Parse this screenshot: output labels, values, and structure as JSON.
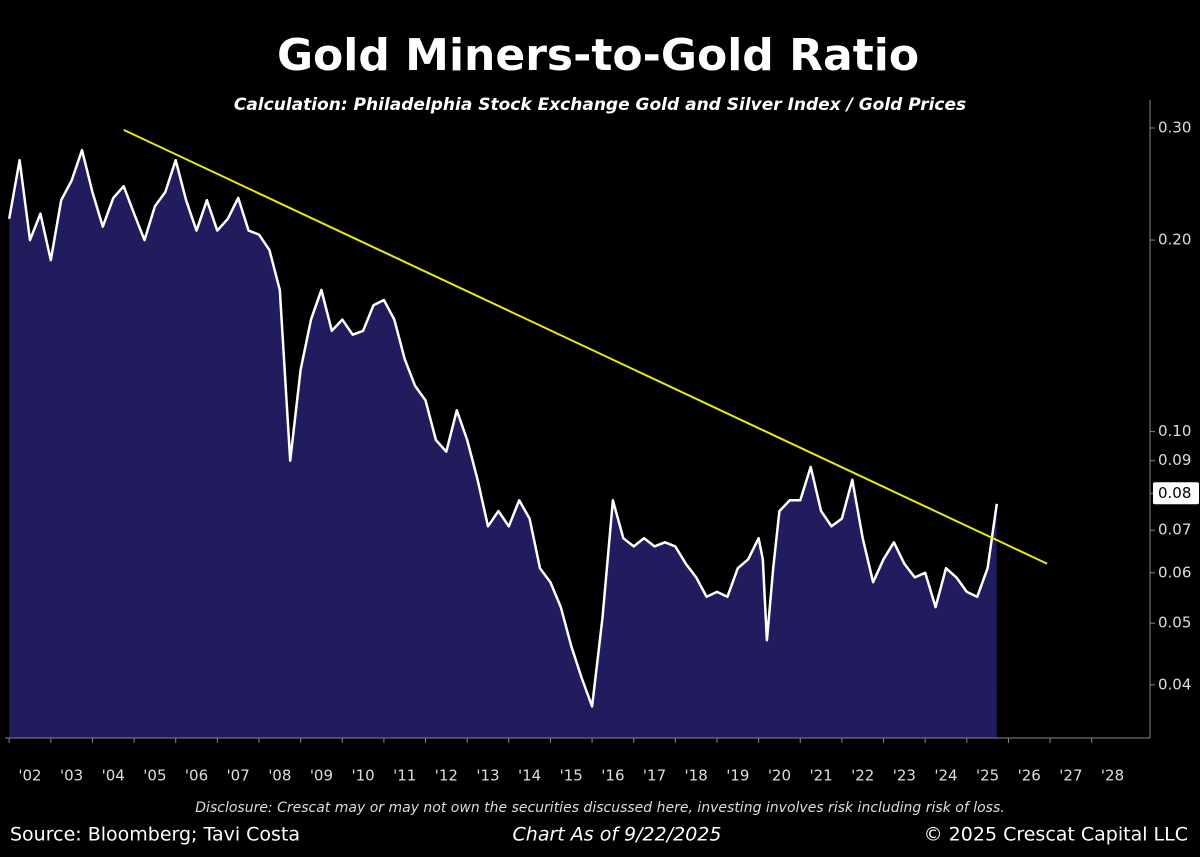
{
  "chart_data": {
    "type": "area",
    "title": "Gold Miners-to-Gold Ratio",
    "subtitle": "Calculation: Philadelphia Stock Exchange Gold and Silver Index / Gold Prices",
    "disclosure": "Disclosure: Crescat may or may not own the securities discussed here, investing involves risk including risk of loss.",
    "source": "Source: Bloomberg; Tavi Costa",
    "as_of": "Chart As of 9/22/2025",
    "copyright": "© 2025 Crescat Capital LLC",
    "log_scale": true,
    "x": [
      2002.0,
      2002.25,
      2002.5,
      2002.75,
      2003.0,
      2003.25,
      2003.5,
      2003.75,
      2004.0,
      2004.25,
      2004.5,
      2004.75,
      2005.0,
      2005.25,
      2005.5,
      2005.75,
      2006.0,
      2006.25,
      2006.5,
      2006.75,
      2007.0,
      2007.25,
      2007.5,
      2007.75,
      2008.0,
      2008.25,
      2008.5,
      2008.75,
      2009.0,
      2009.25,
      2009.5,
      2009.75,
      2010.0,
      2010.25,
      2010.5,
      2010.75,
      2011.0,
      2011.25,
      2011.5,
      2011.75,
      2012.0,
      2012.25,
      2012.5,
      2012.75,
      2013.0,
      2013.25,
      2013.5,
      2013.75,
      2014.0,
      2014.25,
      2014.5,
      2014.75,
      2015.0,
      2015.25,
      2015.5,
      2015.75,
      2016.0,
      2016.25,
      2016.5,
      2016.75,
      2017.0,
      2017.25,
      2017.5,
      2017.75,
      2018.0,
      2018.25,
      2018.5,
      2018.75,
      2019.0,
      2019.25,
      2019.5,
      2019.75,
      2020.0,
      2020.1,
      2020.2,
      2020.35,
      2020.5,
      2020.75,
      2021.0,
      2021.25,
      2021.5,
      2021.75,
      2022.0,
      2022.25,
      2022.5,
      2022.75,
      2023.0,
      2023.25,
      2023.5,
      2023.75,
      2024.0,
      2024.25,
      2024.5,
      2024.75,
      2025.0,
      2025.25,
      2025.5,
      2025.72
    ],
    "series": [
      {
        "color": "#ffffff",
        "fill": "#201c5e",
        "values": [
          0.216,
          0.267,
          0.2,
          0.22,
          0.186,
          0.231,
          0.248,
          0.277,
          0.238,
          0.21,
          0.233,
          0.243,
          0.22,
          0.2,
          0.226,
          0.238,
          0.267,
          0.231,
          0.207,
          0.231,
          0.207,
          0.216,
          0.233,
          0.207,
          0.204,
          0.193,
          0.167,
          0.09,
          0.125,
          0.15,
          0.167,
          0.144,
          0.15,
          0.142,
          0.144,
          0.158,
          0.161,
          0.15,
          0.13,
          0.118,
          0.112,
          0.097,
          0.093,
          0.108,
          0.097,
          0.084,
          0.071,
          0.075,
          0.071,
          0.078,
          0.073,
          0.061,
          0.058,
          0.053,
          0.046,
          0.041,
          0.037,
          0.051,
          0.078,
          0.068,
          0.066,
          0.068,
          0.066,
          0.067,
          0.066,
          0.062,
          0.059,
          0.055,
          0.056,
          0.055,
          0.061,
          0.063,
          0.068,
          0.063,
          0.047,
          0.061,
          0.075,
          0.078,
          0.078,
          0.088,
          0.075,
          0.071,
          0.073,
          0.084,
          0.068,
          0.058,
          0.063,
          0.067,
          0.062,
          0.059,
          0.06,
          0.053,
          0.061,
          0.059,
          0.056,
          0.055,
          0.061,
          0.077
        ]
      }
    ],
    "trendline": {
      "color": "#e8e81a",
      "x": [
        2004.75,
        2026.93
      ],
      "values": [
        0.298,
        0.062
      ]
    },
    "xlim": [
      2001.9,
      2029.4
    ],
    "xticks": [
      {
        "value": 2002,
        "label": "'02"
      },
      {
        "value": 2003,
        "label": "'03"
      },
      {
        "value": 2004,
        "label": "'04"
      },
      {
        "value": 2005,
        "label": "'05"
      },
      {
        "value": 2006,
        "label": "'06"
      },
      {
        "value": 2007,
        "label": "'07"
      },
      {
        "value": 2008,
        "label": "'08"
      },
      {
        "value": 2009,
        "label": "'09"
      },
      {
        "value": 2010,
        "label": "'10"
      },
      {
        "value": 2011,
        "label": "'11"
      },
      {
        "value": 2012,
        "label": "'12"
      },
      {
        "value": 2013,
        "label": "'13"
      },
      {
        "value": 2014,
        "label": "'14"
      },
      {
        "value": 2015,
        "label": "'15"
      },
      {
        "value": 2016,
        "label": "'16"
      },
      {
        "value": 2017,
        "label": "'17"
      },
      {
        "value": 2018,
        "label": "'18"
      },
      {
        "value": 2019,
        "label": "'19"
      },
      {
        "value": 2020,
        "label": "'20"
      },
      {
        "value": 2021,
        "label": "'21"
      },
      {
        "value": 2022,
        "label": "'22"
      },
      {
        "value": 2023,
        "label": "'23"
      },
      {
        "value": 2024,
        "label": "'24"
      },
      {
        "value": 2025,
        "label": "'25"
      },
      {
        "value": 2026,
        "label": "'26"
      },
      {
        "value": 2027,
        "label": "'27"
      },
      {
        "value": 2028,
        "label": "'28"
      }
    ],
    "ylim": [
      0.033,
      0.332
    ],
    "yticks": [
      {
        "value": 0.3,
        "label": "0.30"
      },
      {
        "value": 0.2,
        "label": "0.20"
      },
      {
        "value": 0.1,
        "label": "0.10"
      },
      0.09,
      0.08,
      0.07,
      0.06,
      0.05,
      0.04
    ],
    "highlight_tick": 0.08
  }
}
